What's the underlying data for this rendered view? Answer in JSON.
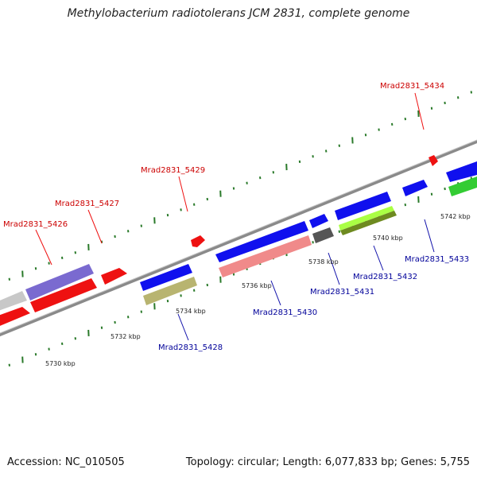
{
  "title": "Methylobacterium radiotolerans JCM 2831, complete genome",
  "footer": {
    "accession": "Accession: NC_010505",
    "topology": "Topology: circular; Length: 6,077,833 bp; Genes: 5,755"
  },
  "colors": {
    "forward_label": "#cc0000",
    "reverse_label": "#000099",
    "tick": "#2a7a2a",
    "backbone": "#8a8a8a"
  },
  "scale_labels": [
    {
      "id": "kbp-5730",
      "text": "5730 kbp"
    },
    {
      "id": "kbp-5732",
      "text": "5732 kbp"
    },
    {
      "id": "kbp-5734",
      "text": "5734 kbp"
    },
    {
      "id": "kbp-5736",
      "text": "5736 kbp"
    },
    {
      "id": "kbp-5738",
      "text": "5738 kbp"
    },
    {
      "id": "kbp-5740",
      "text": "5740 kbp"
    },
    {
      "id": "kbp-5742",
      "text": "5742 kbp"
    }
  ],
  "gene_labels": [
    {
      "id": "gene-label-5426",
      "text": "Mrad2831_5426",
      "strand": "forward"
    },
    {
      "id": "gene-label-5427",
      "text": "Mrad2831_5427",
      "strand": "forward"
    },
    {
      "id": "gene-label-5429",
      "text": "Mrad2831_5429",
      "strand": "forward"
    },
    {
      "id": "gene-label-5434",
      "text": "Mrad2831_5434",
      "strand": "forward"
    },
    {
      "id": "gene-label-5428",
      "text": "Mrad2831_5428",
      "strand": "reverse"
    },
    {
      "id": "gene-label-5430",
      "text": "Mrad2831_5430",
      "strand": "reverse"
    },
    {
      "id": "gene-label-5431",
      "text": "Mrad2831_5431",
      "strand": "reverse"
    },
    {
      "id": "gene-label-5432",
      "text": "Mrad2831_5432",
      "strand": "reverse"
    },
    {
      "id": "gene-label-5433",
      "text": "Mrad2831_5433",
      "strand": "reverse"
    }
  ]
}
